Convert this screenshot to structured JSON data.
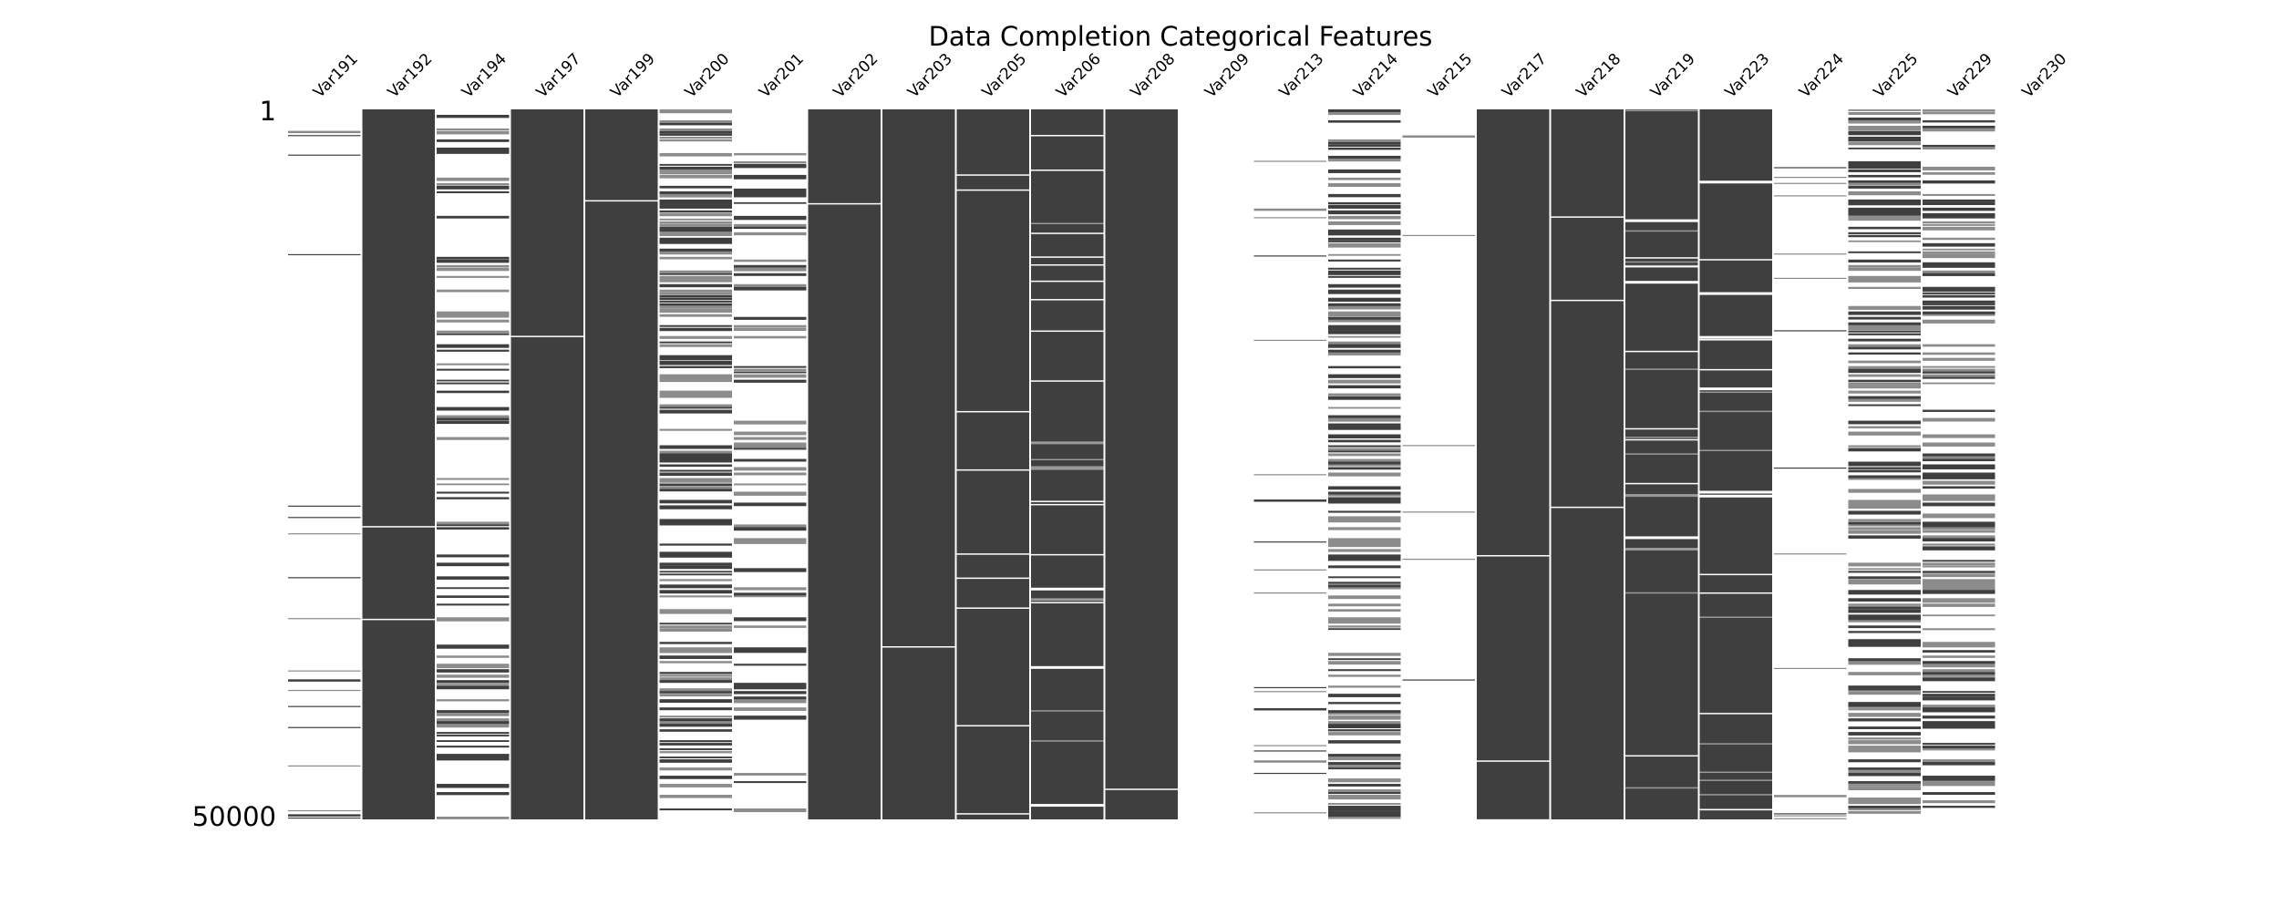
{
  "chart_data": {
    "type": "heatmap",
    "title": "Data Completion Categorical Features",
    "row_range": [
      1,
      50000
    ],
    "row_labels": [
      "1",
      "50000"
    ],
    "present_color": "#3f3f3f",
    "missing_color": "#ffffff",
    "columns": [
      {
        "name": "Var191",
        "present_fraction": 0.02,
        "pattern": "sparse"
      },
      {
        "name": "Var192",
        "present_fraction": 0.99,
        "pattern": "solid"
      },
      {
        "name": "Var194",
        "present_fraction": 0.25,
        "pattern": "striped"
      },
      {
        "name": "Var197",
        "present_fraction": 0.998,
        "pattern": "solid"
      },
      {
        "name": "Var199",
        "present_fraction": 0.9999,
        "pattern": "solid"
      },
      {
        "name": "Var200",
        "present_fraction": 0.5,
        "pattern": "striped"
      },
      {
        "name": "Var201",
        "present_fraction": 0.26,
        "pattern": "striped"
      },
      {
        "name": "Var202",
        "present_fraction": 0.9999,
        "pattern": "solid"
      },
      {
        "name": "Var203",
        "present_fraction": 0.997,
        "pattern": "solid"
      },
      {
        "name": "Var205",
        "present_fraction": 0.96,
        "pattern": "solid"
      },
      {
        "name": "Var206",
        "present_fraction": 0.89,
        "pattern": "mixed"
      },
      {
        "name": "Var208",
        "present_fraction": 0.997,
        "pattern": "solid"
      },
      {
        "name": "Var209",
        "present_fraction": 0.0,
        "pattern": "empty"
      },
      {
        "name": "Var213",
        "present_fraction": 0.02,
        "pattern": "sparse"
      },
      {
        "name": "Var214",
        "present_fraction": 0.5,
        "pattern": "striped"
      },
      {
        "name": "Var215",
        "present_fraction": 0.004,
        "pattern": "sparse"
      },
      {
        "name": "Var217",
        "present_fraction": 0.986,
        "pattern": "solid"
      },
      {
        "name": "Var218",
        "present_fraction": 0.986,
        "pattern": "solid"
      },
      {
        "name": "Var219",
        "present_fraction": 0.9,
        "pattern": "mixed"
      },
      {
        "name": "Var223",
        "present_fraction": 0.9,
        "pattern": "mixed"
      },
      {
        "name": "Var224",
        "present_fraction": 0.016,
        "pattern": "sparse"
      },
      {
        "name": "Var225",
        "present_fraction": 0.48,
        "pattern": "striped"
      },
      {
        "name": "Var229",
        "present_fraction": 0.43,
        "pattern": "striped"
      },
      {
        "name": "Var230",
        "present_fraction": 0.0,
        "pattern": "empty"
      }
    ],
    "grid": false,
    "legend": "none"
  }
}
